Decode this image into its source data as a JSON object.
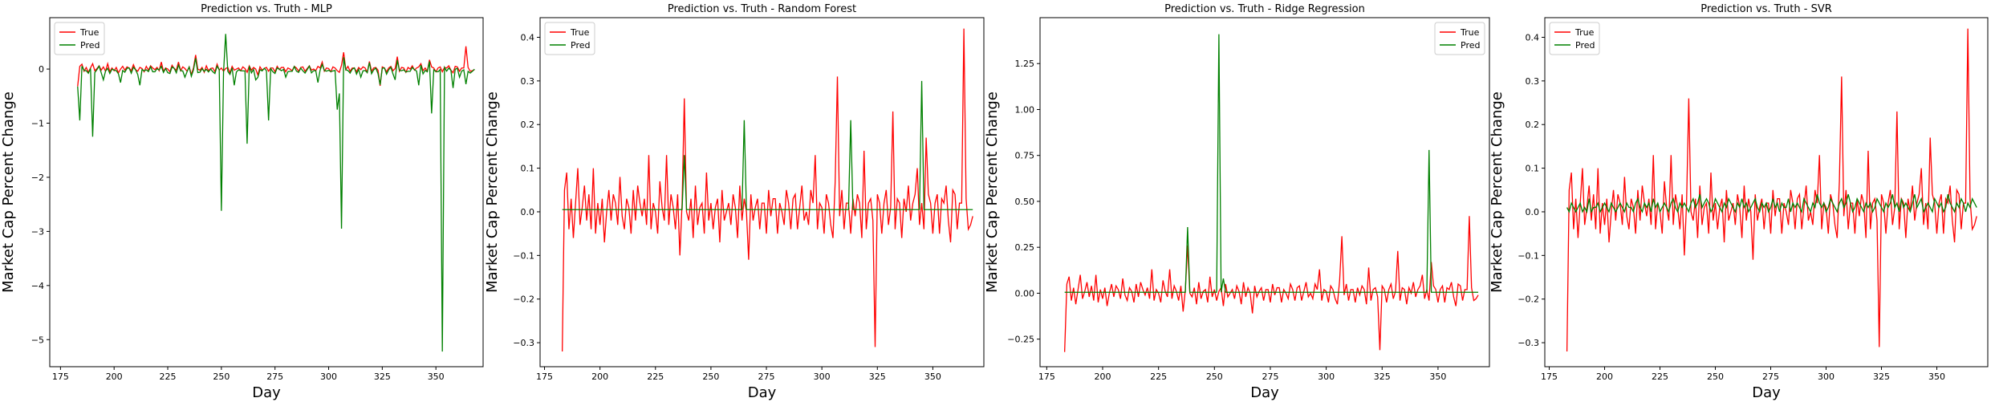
{
  "colors": {
    "true": "#ff0000",
    "pred": "#008000"
  },
  "chart_data": [
    {
      "type": "line",
      "title": "Prediction vs. Truth - MLP",
      "xlabel": "Day",
      "ylabel": "Market Cap Percent Change",
      "xlim": [
        170,
        372
      ],
      "ylim": [
        -5.5,
        0.95
      ],
      "xticks": [
        175,
        200,
        225,
        250,
        275,
        300,
        325,
        350
      ],
      "yticks": [
        -5,
        -4,
        -3,
        -2,
        -1,
        0
      ],
      "yticklabels": [
        "−5",
        "−4",
        "−3",
        "−2",
        "−1",
        "0"
      ],
      "legend": "upper-left",
      "series": [
        {
          "name": "True",
          "key": "true"
        },
        {
          "name": "Pred",
          "key": "pred",
          "spikes": [
            [
              184,
              -0.95
            ],
            [
              190,
              -1.25
            ],
            [
              195,
              -0.2
            ],
            [
              203,
              -0.25
            ],
            [
              212,
              -0.3
            ],
            [
              233,
              -0.15
            ],
            [
              250,
              -2.62
            ],
            [
              252,
              0.65
            ],
            [
              256,
              -0.3
            ],
            [
              262,
              -1.38
            ],
            [
              266,
              -0.2
            ],
            [
              272,
              -0.95
            ],
            [
              280,
              -0.15
            ],
            [
              295,
              -0.25
            ],
            [
              304,
              -0.75
            ],
            [
              305,
              -0.45
            ],
            [
              306,
              -2.95
            ],
            [
              315,
              -0.15
            ],
            [
              331,
              -0.2
            ],
            [
              342,
              -0.3
            ],
            [
              348,
              -0.82
            ],
            [
              353,
              -5.22
            ],
            [
              358,
              -0.35
            ],
            [
              361,
              -0.15
            ],
            [
              364,
              -0.28
            ]
          ]
        }
      ]
    },
    {
      "type": "line",
      "title": "Prediction vs. Truth - Random Forest",
      "xlabel": "Day",
      "ylabel": "Market Cap Percent Change",
      "xlim": [
        173,
        373
      ],
      "ylim": [
        -0.355,
        0.445
      ],
      "xticks": [
        175,
        200,
        225,
        250,
        275,
        300,
        325,
        350
      ],
      "yticks": [
        -0.3,
        -0.2,
        -0.1,
        0.0,
        0.1,
        0.2,
        0.3,
        0.4
      ],
      "yticklabels": [
        "−0.3",
        "−0.2",
        "−0.1",
        "0.0",
        "0.1",
        "0.2",
        "0.3",
        "0.4"
      ],
      "legend": "upper-left",
      "series": [
        {
          "name": "True",
          "key": "true"
        },
        {
          "name": "Pred",
          "key": "pred",
          "spikes": [
            [
              238,
              0.13
            ],
            [
              265,
              0.21
            ],
            [
              313,
              0.21
            ],
            [
              345,
              0.3
            ]
          ]
        }
      ]
    },
    {
      "type": "line",
      "title": "Prediction vs. Truth - Ridge Regression",
      "xlabel": "Day",
      "ylabel": "Market Cap Percent Change",
      "xlim": [
        172,
        373
      ],
      "ylim": [
        -0.4,
        1.5
      ],
      "xticks": [
        175,
        200,
        225,
        250,
        275,
        300,
        325,
        350
      ],
      "yticks": [
        -0.25,
        0.0,
        0.25,
        0.5,
        0.75,
        1.0,
        1.25
      ],
      "yticklabels": [
        "−0.25",
        "0.00",
        "0.25",
        "0.50",
        "0.75",
        "1.00",
        "1.25"
      ],
      "legend": "upper-right",
      "series": [
        {
          "name": "True",
          "key": "true"
        },
        {
          "name": "Pred",
          "key": "pred",
          "spikes": [
            [
              238,
              0.36
            ],
            [
              252,
              1.41
            ],
            [
              254,
              0.08
            ],
            [
              346,
              0.78
            ]
          ]
        }
      ]
    },
    {
      "type": "line",
      "title": "Prediction vs. Truth - SVR",
      "xlabel": "Day",
      "ylabel": "Market Cap Percent Change",
      "xlim": [
        173,
        373
      ],
      "ylim": [
        -0.355,
        0.445
      ],
      "xticks": [
        175,
        200,
        225,
        250,
        275,
        300,
        325,
        350
      ],
      "yticks": [
        -0.3,
        -0.2,
        -0.1,
        0.0,
        0.1,
        0.2,
        0.3,
        0.4
      ],
      "yticklabels": [
        "−0.3",
        "−0.2",
        "−0.1",
        "0.0",
        "0.1",
        "0.2",
        "0.3",
        "0.4"
      ],
      "legend": "upper-left",
      "series": [
        {
          "name": "True",
          "key": "true"
        },
        {
          "name": "Pred",
          "key": "pred"
        }
      ]
    }
  ],
  "truth": {
    "x_start": 183,
    "values": [
      -0.32,
      0.05,
      0.09,
      -0.04,
      0.03,
      -0.06,
      0.02,
      0.1,
      -0.03,
      0.01,
      0.06,
      -0.02,
      0.04,
      -0.04,
      0.1,
      -0.05,
      0.02,
      -0.03,
      0.03,
      -0.07,
      0.0,
      0.05,
      -0.02,
      0.04,
      0.02,
      -0.03,
      0.08,
      -0.01,
      -0.04,
      0.03,
      0.01,
      -0.05,
      0.05,
      -0.02,
      0.06,
      0.02,
      -0.01,
      0.03,
      -0.03,
      0.13,
      -0.04,
      0.02,
      0.0,
      -0.05,
      0.07,
      0.01,
      -0.02,
      0.13,
      -0.03,
      0.04,
      0.01,
      -0.04,
      0.04,
      -0.1,
      0.02,
      0.26,
      0.0,
      -0.02,
      0.03,
      -0.06,
      0.06,
      -0.03,
      0.01,
      0.02,
      -0.05,
      0.09,
      -0.02,
      0.02,
      -0.04,
      0.01,
      0.03,
      -0.07,
      0.05,
      -0.02,
      0.0,
      0.02,
      -0.03,
      0.04,
      0.01,
      -0.06,
      0.06,
      -0.02,
      0.03,
      0.0,
      -0.11,
      0.04,
      -0.02,
      0.01,
      0.03,
      -0.04,
      0.02,
      0.02,
      -0.05,
      0.05,
      -0.01,
      0.03,
      0.03,
      -0.05,
      0.02,
      0.0,
      -0.03,
      0.05,
      0.02,
      -0.04,
      0.03,
      0.04,
      -0.04,
      0.01,
      0.06,
      -0.02,
      0.0,
      -0.03,
      0.05,
      0.02,
      0.13,
      -0.04,
      0.02,
      0.01,
      -0.05,
      0.04,
      0.02,
      -0.03,
      -0.06,
      0.07,
      0.31,
      -0.01,
      0.05,
      -0.04,
      0.02,
      0.02,
      -0.05,
      0.03,
      -0.01,
      0.04,
      0.02,
      -0.06,
      0.14,
      -0.04,
      0.02,
      0.03,
      -0.02,
      -0.31,
      0.04,
      0.02,
      -0.05,
      0.02,
      0.05,
      -0.03,
      0.01,
      0.23,
      -0.04,
      0.03,
      0.02,
      -0.06,
      0.03,
      0.0,
      0.06,
      -0.02,
      0.02,
      0.04,
      0.1,
      -0.03,
      0.02,
      -0.04,
      0.17,
      0.04,
      0.02,
      -0.05,
      0.02,
      0.04,
      -0.05,
      0.03,
      0.02,
      0.06,
      -0.02,
      -0.07,
      0.05,
      0.04,
      -0.04,
      0.02,
      0.02,
      0.42,
      0.03,
      -0.04,
      -0.03,
      -0.01
    ]
  },
  "svr_pred": [
    0.01,
    0.0,
    0.02,
    0.01,
    0.0,
    0.01,
    0.02,
    0.0,
    0.01,
    0.0,
    0.03,
    0.0,
    0.01,
    0.01,
    0.02,
    0.0,
    0.01,
    0.02,
    0.01,
    0.0,
    0.02,
    0.01,
    0.0,
    0.01,
    0.02,
    0.01,
    0.0,
    0.02,
    0.01,
    0.01,
    0.0,
    0.02,
    0.03,
    0.01,
    0.0,
    0.02,
    0.01,
    0.02,
    0.0,
    0.03,
    0.01,
    0.02,
    0.0,
    0.01,
    0.02,
    0.01,
    0.0,
    0.02,
    0.03,
    0.01,
    0.0,
    0.02,
    0.01,
    0.02,
    0.01,
    0.0,
    0.02,
    0.03,
    0.01,
    0.02,
    0.04,
    0.01,
    0.02,
    0.03,
    0.02,
    0.0,
    0.01,
    0.03,
    0.02,
    0.01,
    0.0,
    0.02,
    0.01,
    0.03,
    0.02,
    0.01,
    0.0,
    0.02,
    0.01,
    0.03,
    0.01,
    0.02,
    0.0,
    0.01,
    0.02,
    0.03,
    0.01,
    0.0,
    0.02,
    0.01,
    0.02,
    0.0,
    0.01,
    0.03,
    0.01,
    0.02,
    0.0,
    0.02,
    0.01,
    0.01,
    0.03,
    0.0,
    0.02,
    0.01,
    0.02,
    0.01,
    0.0,
    0.03,
    0.02,
    0.01,
    0.0,
    0.02,
    0.01,
    0.04,
    0.02,
    0.01,
    0.02,
    0.0,
    0.01,
    0.03,
    0.02,
    0.01,
    0.0,
    0.02,
    0.03,
    0.01,
    0.02,
    0.04,
    0.02,
    0.0,
    0.01,
    0.03,
    0.02,
    0.01,
    0.0,
    0.02,
    0.01,
    0.02,
    0.0,
    0.01,
    0.03,
    0.02,
    0.01,
    0.0,
    0.02,
    0.01,
    0.02,
    0.04,
    0.01,
    0.02,
    0.0,
    0.03,
    0.01,
    0.02,
    0.01,
    0.0,
    0.02,
    0.04,
    0.01,
    0.02,
    0.03,
    0.0,
    0.01,
    0.02,
    0.01,
    0.0,
    0.03,
    0.02,
    0.01,
    0.02,
    0.0,
    0.01,
    0.04,
    0.02,
    0.01,
    0.0,
    0.02,
    0.01,
    0.03,
    0.02,
    0.0,
    0.02,
    0.01,
    0.03,
    0.02,
    0.01,
    0.02,
    0.01,
    0.0
  ],
  "flat_pred": 0.005
}
